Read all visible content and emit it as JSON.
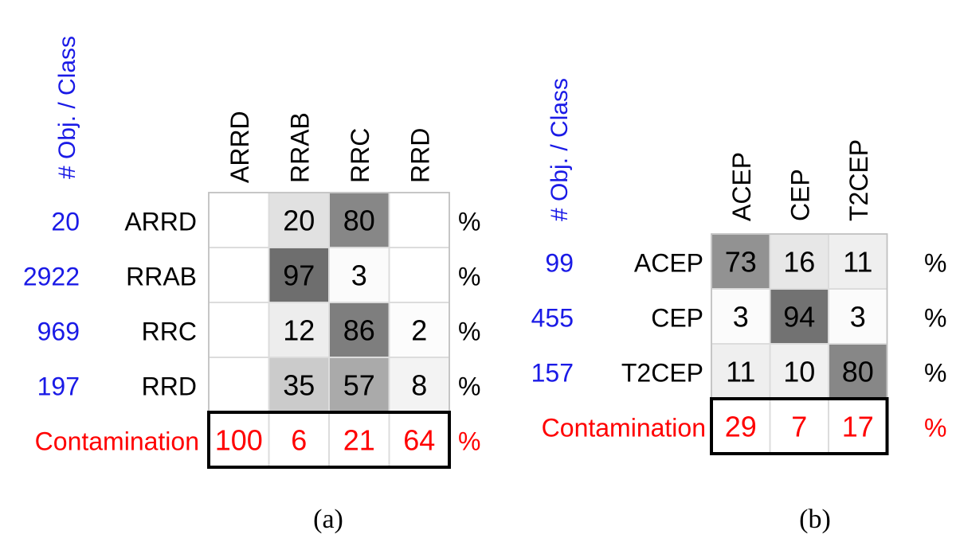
{
  "chart_data": [
    {
      "type": "heatmap",
      "panel_label": "(a)",
      "count_header": "# Obj. / Class",
      "columns": [
        "ARRD",
        "RRAB",
        "RRC",
        "RRD"
      ],
      "rows": [
        {
          "label": "ARRD",
          "count": "20",
          "values": [
            null,
            20,
            80,
            null
          ]
        },
        {
          "label": "RRAB",
          "count": "2922",
          "values": [
            null,
            97,
            3,
            null
          ]
        },
        {
          "label": "RRC",
          "count": "969",
          "values": [
            null,
            12,
            86,
            2
          ]
        },
        {
          "label": "RRD",
          "count": "197",
          "values": [
            null,
            35,
            57,
            8
          ]
        }
      ],
      "unit": "%",
      "contamination_label": "Contamination",
      "contamination": [
        100,
        6,
        21,
        64
      ]
    },
    {
      "type": "heatmap",
      "panel_label": "(b)",
      "count_header": "# Obj. / Class",
      "columns": [
        "ACEP",
        "CEP",
        "T2CEP"
      ],
      "rows": [
        {
          "label": "ACEP",
          "count": "99",
          "values": [
            73,
            16,
            11
          ]
        },
        {
          "label": "CEP",
          "count": "455",
          "values": [
            3,
            94,
            3
          ]
        },
        {
          "label": "T2CEP",
          "count": "157",
          "values": [
            11,
            10,
            80
          ]
        }
      ],
      "unit": "%",
      "contamination_label": "Contamination",
      "contamination": [
        29,
        7,
        17
      ]
    }
  ],
  "colors": {
    "count_text": "#1a1ae6",
    "contamination_text": "#ff0000",
    "grid_line": "#dcdcdc",
    "border": "#000000"
  }
}
